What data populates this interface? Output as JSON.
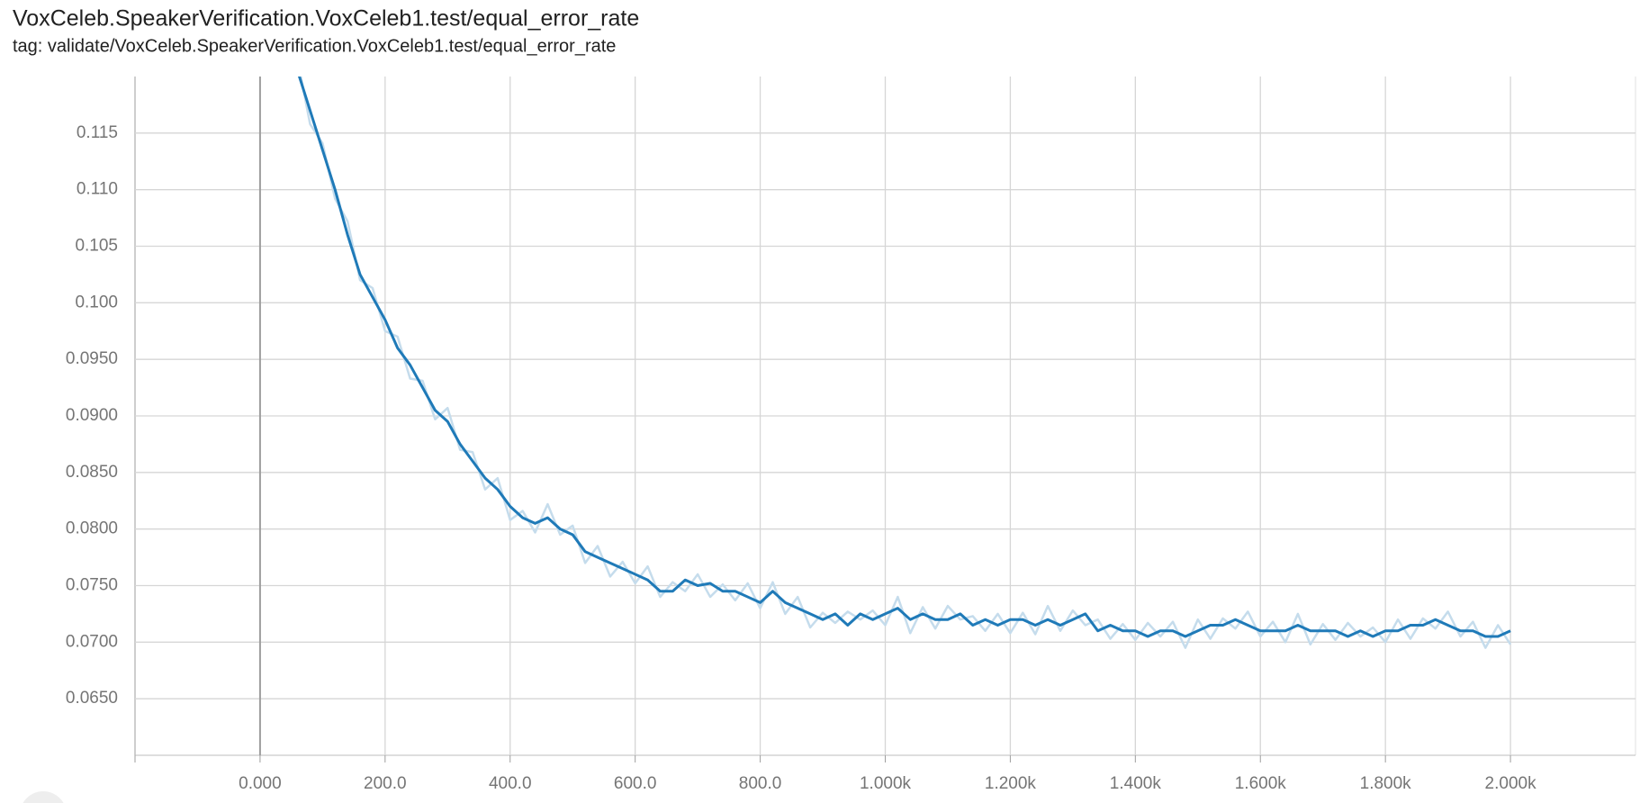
{
  "chart_data": {
    "type": "line",
    "title": "VoxCeleb.SpeakerVerification.VoxCeleb1.test/equal_error_rate",
    "subtitle": "tag: validate/VoxCeleb.SpeakerVerification.VoxCeleb1.test/equal_error_rate",
    "x": [
      60,
      80,
      100,
      120,
      140,
      160,
      180,
      200,
      220,
      240,
      260,
      280,
      300,
      320,
      340,
      360,
      380,
      400,
      420,
      440,
      460,
      480,
      500,
      520,
      540,
      560,
      580,
      600,
      620,
      640,
      660,
      680,
      700,
      720,
      740,
      760,
      780,
      800,
      820,
      840,
      860,
      880,
      900,
      920,
      940,
      960,
      980,
      1000,
      1020,
      1040,
      1060,
      1080,
      1100,
      1120,
      1140,
      1160,
      1180,
      1200,
      1220,
      1240,
      1260,
      1280,
      1300,
      1320,
      1340,
      1360,
      1380,
      1400,
      1420,
      1440,
      1460,
      1480,
      1500,
      1520,
      1540,
      1560,
      1580,
      1600,
      1620,
      1640,
      1660,
      1680,
      1700,
      1720,
      1740,
      1760,
      1780,
      1800,
      1820,
      1840,
      1860,
      1880,
      1900,
      1920,
      1940,
      1960,
      1980,
      2000
    ],
    "series": [
      {
        "color": "#c5dcec",
        "values": [
          0.1215,
          0.1158,
          0.1141,
          0.1092,
          0.1072,
          0.102,
          0.1013,
          0.0975,
          0.097,
          0.0933,
          0.0931,
          0.0897,
          0.0907,
          0.087,
          0.0868,
          0.0835,
          0.0845,
          0.0808,
          0.0816,
          0.0797,
          0.0822,
          0.0795,
          0.0803,
          0.077,
          0.0785,
          0.0758,
          0.0771,
          0.0752,
          0.0767,
          0.074,
          0.0753,
          0.0745,
          0.076,
          0.074,
          0.0751,
          0.0737,
          0.0752,
          0.073,
          0.0753,
          0.0725,
          0.074,
          0.0713,
          0.0726,
          0.0717,
          0.0727,
          0.072,
          0.0728,
          0.0715,
          0.074,
          0.0708,
          0.0731,
          0.0712,
          0.0732,
          0.072,
          0.0723,
          0.071,
          0.0725,
          0.0708,
          0.0726,
          0.0707,
          0.0732,
          0.071,
          0.0728,
          0.0715,
          0.072,
          0.0703,
          0.0716,
          0.0702,
          0.0717,
          0.0705,
          0.0718,
          0.0695,
          0.072,
          0.0703,
          0.0721,
          0.0712,
          0.0727,
          0.0705,
          0.0718,
          0.07,
          0.0725,
          0.0698,
          0.0716,
          0.0702,
          0.0717,
          0.0705,
          0.0713,
          0.07,
          0.072,
          0.0703,
          0.0721,
          0.0712,
          0.0727,
          0.0705,
          0.0718,
          0.0695,
          0.0715,
          0.0698
        ]
      },
      {
        "color": "#1f7ab8",
        "values": [
          0.1205,
          0.117,
          0.1135,
          0.11,
          0.106,
          0.1025,
          0.1005,
          0.0985,
          0.096,
          0.0945,
          0.0925,
          0.0905,
          0.0895,
          0.0875,
          0.086,
          0.0845,
          0.0835,
          0.082,
          0.081,
          0.0805,
          0.081,
          0.08,
          0.0795,
          0.078,
          0.0775,
          0.077,
          0.0765,
          0.076,
          0.0755,
          0.0745,
          0.0745,
          0.0755,
          0.075,
          0.0752,
          0.0745,
          0.0745,
          0.074,
          0.0735,
          0.0745,
          0.0735,
          0.073,
          0.0725,
          0.072,
          0.0725,
          0.0715,
          0.0725,
          0.072,
          0.0725,
          0.073,
          0.072,
          0.0725,
          0.072,
          0.072,
          0.0725,
          0.0715,
          0.072,
          0.0715,
          0.072,
          0.072,
          0.0715,
          0.072,
          0.0715,
          0.072,
          0.0725,
          0.071,
          0.0715,
          0.071,
          0.071,
          0.0705,
          0.071,
          0.071,
          0.0705,
          0.071,
          0.0715,
          0.0715,
          0.072,
          0.0715,
          0.071,
          0.071,
          0.071,
          0.0715,
          0.071,
          0.071,
          0.071,
          0.0705,
          0.071,
          0.0705,
          0.071,
          0.071,
          0.0715,
          0.0715,
          0.072,
          0.0715,
          0.071,
          0.071,
          0.0705,
          0.0705,
          0.071
        ]
      }
    ],
    "xlim": [
      -200,
      2200
    ],
    "ylim": [
      0.06,
      0.12
    ],
    "xticks": [
      {
        "value": 0,
        "label": "0.000"
      },
      {
        "value": 200,
        "label": "200.0"
      },
      {
        "value": 400,
        "label": "400.0"
      },
      {
        "value": 600,
        "label": "600.0"
      },
      {
        "value": 800,
        "label": "800.0"
      },
      {
        "value": 1000,
        "label": "1.000k"
      },
      {
        "value": 1200,
        "label": "1.200k"
      },
      {
        "value": 1400,
        "label": "1.400k"
      },
      {
        "value": 1600,
        "label": "1.600k"
      },
      {
        "value": 1800,
        "label": "1.800k"
      },
      {
        "value": 2000,
        "label": "2.000k"
      }
    ],
    "yticks": [
      0.115,
      {
        "value": 0.11,
        "label": "0.110"
      },
      0.105,
      {
        "value": 0.1,
        "label": "0.100"
      },
      {
        "value": 0.095,
        "label": "0.0950"
      },
      {
        "value": 0.09,
        "label": "0.0900"
      },
      {
        "value": 0.085,
        "label": "0.0850"
      },
      {
        "value": 0.08,
        "label": "0.0800"
      },
      {
        "value": 0.075,
        "label": "0.0750"
      },
      {
        "value": 0.07,
        "label": "0.0700"
      },
      {
        "value": 0.065,
        "label": "0.0650"
      }
    ],
    "grid": true
  }
}
